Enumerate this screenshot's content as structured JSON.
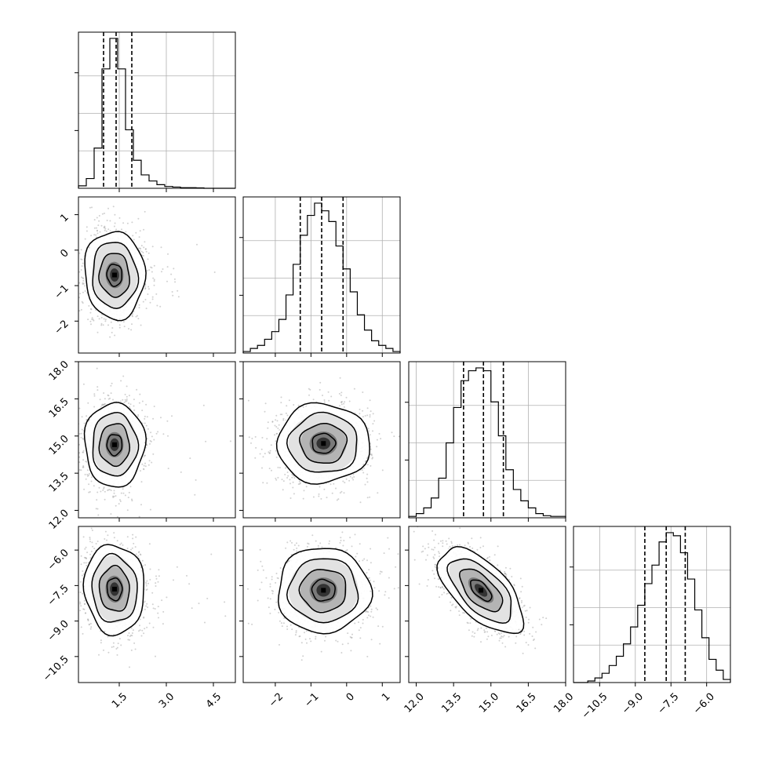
{
  "chart_data": {
    "type": "corner",
    "grid": true,
    "parameters": [
      {
        "index": 0,
        "range": [
          0.2,
          5.2
        ],
        "ticks": [
          1.5,
          3.0,
          4.5
        ],
        "tick_labels": [
          "1.5",
          "3.0",
          "4.5"
        ]
      },
      {
        "index": 1,
        "range": [
          -2.9,
          1.5
        ],
        "ticks": [
          -2,
          -1,
          0,
          1
        ],
        "tick_labels": [
          "−2",
          "−1",
          "0",
          "1"
        ]
      },
      {
        "index": 2,
        "range": [
          11.7,
          18.0
        ],
        "ticks": [
          12.0,
          13.5,
          15.0,
          16.5,
          18.0
        ],
        "tick_labels": [
          "12.0",
          "13.5",
          "15.0",
          "16.5",
          "18.0"
        ]
      },
      {
        "index": 3,
        "range": [
          -11.6,
          -5.0
        ],
        "ticks": [
          -10.5,
          -9.0,
          -7.5,
          -6.0
        ],
        "tick_labels": [
          "−10.5",
          "−9.0",
          "−7.5",
          "−6.0"
        ]
      }
    ],
    "histograms": [
      {
        "param": 0,
        "quantiles": [
          1.0,
          1.4,
          1.9
        ],
        "bins": [
          0.2,
          0.45,
          0.7,
          0.95,
          1.2,
          1.45,
          1.7,
          1.95,
          2.2,
          2.45,
          2.7,
          2.95,
          3.2,
          3.45,
          3.7,
          3.95,
          4.2,
          4.45,
          4.7,
          4.95,
          5.2
        ],
        "counts": [
          2,
          8,
          33,
          98,
          123,
          98,
          48,
          23,
          11,
          6,
          3,
          1.5,
          1,
          0.5,
          0.5,
          0.3,
          0,
          0,
          0,
          0
        ]
      },
      {
        "param": 1,
        "quantiles": [
          -1.3,
          -0.7,
          -0.1
        ],
        "bins": [
          -2.9,
          -2.7,
          -2.5,
          -2.3,
          -2.1,
          -1.9,
          -1.7,
          -1.5,
          -1.3,
          -1.1,
          -0.9,
          -0.7,
          -0.5,
          -0.3,
          -0.1,
          0.1,
          0.3,
          0.5,
          0.7,
          0.9,
          1.1,
          1.3,
          1.5
        ],
        "counts": [
          1,
          3,
          5,
          9,
          14,
          22,
          38,
          58,
          77,
          90,
          98,
          93,
          86,
          70,
          55,
          40,
          25,
          15,
          8,
          5,
          3,
          1
        ]
      },
      {
        "param": 2,
        "quantiles": [
          13.9,
          14.7,
          15.5
        ],
        "bins": [
          11.7,
          12.0,
          12.3,
          12.6,
          12.9,
          13.2,
          13.5,
          13.8,
          14.1,
          14.4,
          14.7,
          15.0,
          15.3,
          15.6,
          15.9,
          16.2,
          16.5,
          16.8,
          17.1,
          17.4,
          17.7,
          18.0
        ],
        "counts": [
          1,
          3,
          7,
          14,
          28,
          53,
          78,
          97,
          104,
          106,
          104,
          82,
          58,
          34,
          20,
          12,
          7,
          3,
          1.5,
          1,
          1
        ]
      },
      {
        "param": 3,
        "quantiles": [
          -8.6,
          -7.7,
          -6.9
        ],
        "bins": [
          -11.6,
          -11.3,
          -11.0,
          -10.7,
          -10.4,
          -10.1,
          -9.8,
          -9.5,
          -9.2,
          -8.9,
          -8.6,
          -8.3,
          -8.0,
          -7.7,
          -7.4,
          -7.1,
          -6.8,
          -6.5,
          -6.2,
          -5.9,
          -5.6,
          -5.3,
          -5.0
        ],
        "counts": [
          0,
          0,
          1,
          3,
          6,
          11,
          17,
          25,
          36,
          50,
          64,
          76,
          91,
          97,
          95,
          84,
          67,
          47,
          29,
          15,
          8,
          2
        ]
      }
    ],
    "pairs": [
      {
        "x_param": 0,
        "y_param": 1,
        "mean": [
          1.35,
          -0.7
        ],
        "sd": [
          0.48,
          0.62
        ],
        "rho": -0.05
      },
      {
        "x_param": 0,
        "y_param": 2,
        "mean": [
          1.35,
          14.65
        ],
        "sd": [
          0.48,
          0.85
        ],
        "rho": 0.0
      },
      {
        "x_param": 1,
        "y_param": 2,
        "mean": [
          -0.65,
          14.7
        ],
        "sd": [
          0.65,
          0.8
        ],
        "rho": 0.0
      },
      {
        "x_param": 0,
        "y_param": 3,
        "mean": [
          1.35,
          -7.65
        ],
        "sd": [
          0.48,
          0.95
        ],
        "rho": -0.05
      },
      {
        "x_param": 1,
        "y_param": 3,
        "mean": [
          -0.65,
          -7.7
        ],
        "sd": [
          0.65,
          0.9
        ],
        "rho": 0.0
      },
      {
        "x_param": 2,
        "y_param": 3,
        "mean": [
          14.6,
          -7.7
        ],
        "sd": [
          0.85,
          0.9
        ],
        "rho": -0.62
      }
    ],
    "contour_levels_sigma": [
      0.5,
      1.0,
      1.5,
      2.0
    ]
  }
}
